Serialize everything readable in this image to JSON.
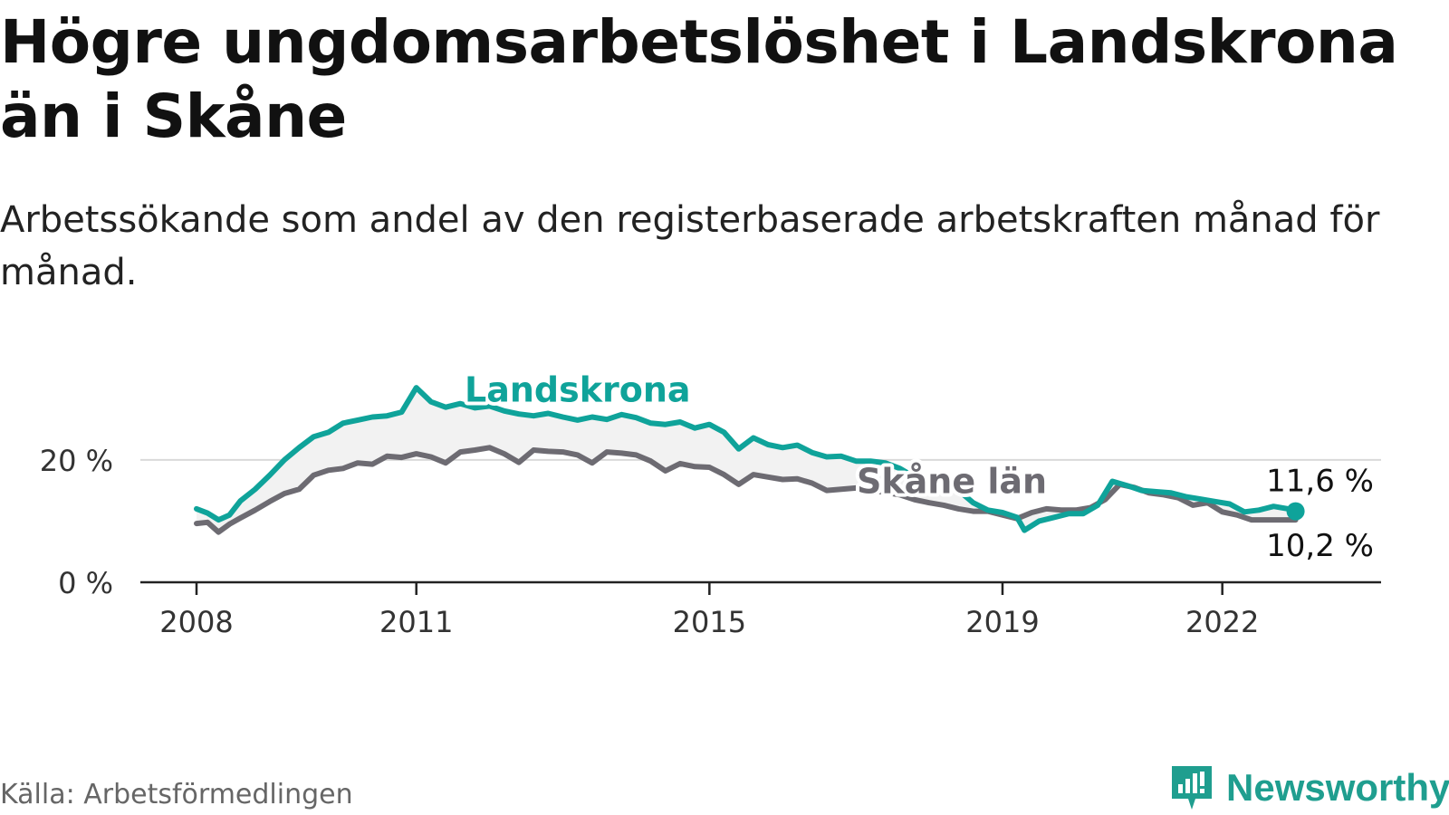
{
  "header": {
    "title": "Högre ungdomsarbetslöshet i Landskrona än i Skåne",
    "subtitle": "Arbetssökande som andel av den registerbaserade arbetskraften månad för månad."
  },
  "footer": {
    "source": "Källa: Arbetsförmedlingen",
    "brand": "Newsworthy"
  },
  "colors": {
    "landskrona": "#0fa39a",
    "skane": "#6d6b72",
    "band": "#f2f2f2",
    "grid": "#d9d9d9",
    "axis": "#222222"
  },
  "chart_data": {
    "type": "line",
    "title": "Högre ungdomsarbetslöshet i Landskrona än i Skåne",
    "xlabel": "",
    "ylabel": "",
    "unit": "%",
    "xlim": [
      2008,
      2023.45
    ],
    "ylim": [
      0,
      33
    ],
    "y_ticks": [
      {
        "value": 0,
        "label": "0 %"
      },
      {
        "value": 20,
        "label": "20 %"
      }
    ],
    "x_ticks": [
      {
        "value": 2008,
        "label": "2008"
      },
      {
        "value": 2011,
        "label": "2011"
      },
      {
        "value": 2015,
        "label": "2015"
      },
      {
        "value": 2019,
        "label": "2019"
      },
      {
        "value": 2022,
        "label": "2022"
      }
    ],
    "shade_between_series": true,
    "series": [
      {
        "name": "Landskrona",
        "color_key": "landskrona",
        "end_label": "11,6 %",
        "end_marker": true,
        "points": [
          [
            2008.0,
            12.0
          ],
          [
            2008.15,
            11.3
          ],
          [
            2008.3,
            10.2
          ],
          [
            2008.45,
            11.0
          ],
          [
            2008.6,
            13.3
          ],
          [
            2008.8,
            15.2
          ],
          [
            2009.0,
            17.5
          ],
          [
            2009.2,
            20.0
          ],
          [
            2009.4,
            22.0
          ],
          [
            2009.6,
            23.8
          ],
          [
            2009.8,
            24.5
          ],
          [
            2010.0,
            26.0
          ],
          [
            2010.2,
            26.5
          ],
          [
            2010.4,
            27.0
          ],
          [
            2010.6,
            27.2
          ],
          [
            2010.8,
            27.8
          ],
          [
            2011.0,
            31.8
          ],
          [
            2011.2,
            29.5
          ],
          [
            2011.4,
            28.6
          ],
          [
            2011.6,
            29.2
          ],
          [
            2011.8,
            28.5
          ],
          [
            2012.0,
            28.8
          ],
          [
            2012.2,
            28.0
          ],
          [
            2012.4,
            27.5
          ],
          [
            2012.6,
            27.2
          ],
          [
            2012.8,
            27.6
          ],
          [
            2013.0,
            27.0
          ],
          [
            2013.2,
            26.5
          ],
          [
            2013.4,
            27.0
          ],
          [
            2013.6,
            26.6
          ],
          [
            2013.8,
            27.4
          ],
          [
            2014.0,
            26.9
          ],
          [
            2014.2,
            26.0
          ],
          [
            2014.4,
            25.8
          ],
          [
            2014.6,
            26.2
          ],
          [
            2014.8,
            25.2
          ],
          [
            2015.0,
            25.8
          ],
          [
            2015.2,
            24.5
          ],
          [
            2015.4,
            21.8
          ],
          [
            2015.6,
            23.6
          ],
          [
            2015.8,
            22.5
          ],
          [
            2016.0,
            22.0
          ],
          [
            2016.2,
            22.4
          ],
          [
            2016.4,
            21.2
          ],
          [
            2016.6,
            20.5
          ],
          [
            2016.8,
            20.6
          ],
          [
            2017.0,
            19.8
          ],
          [
            2017.2,
            19.8
          ],
          [
            2017.4,
            19.5
          ],
          [
            2017.6,
            18.6
          ],
          [
            2017.8,
            17.2
          ],
          [
            2018.0,
            17.0
          ],
          [
            2018.2,
            16.6
          ],
          [
            2018.4,
            15.0
          ],
          [
            2018.6,
            13.0
          ],
          [
            2018.8,
            11.8
          ],
          [
            2019.0,
            11.4
          ],
          [
            2019.2,
            10.6
          ],
          [
            2019.3,
            8.5
          ],
          [
            2019.5,
            10.0
          ],
          [
            2019.7,
            10.6
          ],
          [
            2019.9,
            11.2
          ],
          [
            2020.1,
            11.2
          ],
          [
            2020.3,
            12.6
          ],
          [
            2020.5,
            16.5
          ],
          [
            2020.7,
            15.8
          ],
          [
            2020.9,
            15.0
          ],
          [
            2021.1,
            14.8
          ],
          [
            2021.3,
            14.6
          ],
          [
            2021.5,
            14.0
          ],
          [
            2021.7,
            13.6
          ],
          [
            2021.9,
            13.2
          ],
          [
            2022.1,
            12.8
          ],
          [
            2022.3,
            11.5
          ],
          [
            2022.5,
            11.8
          ],
          [
            2022.7,
            12.4
          ],
          [
            2022.9,
            12.0
          ],
          [
            2023.0,
            11.6
          ]
        ]
      },
      {
        "name": "Skåne län",
        "color_key": "skane",
        "end_label": "10,2 %",
        "end_marker": false,
        "points": [
          [
            2008.0,
            9.6
          ],
          [
            2008.15,
            9.8
          ],
          [
            2008.3,
            8.2
          ],
          [
            2008.45,
            9.5
          ],
          [
            2008.6,
            10.5
          ],
          [
            2008.8,
            11.8
          ],
          [
            2009.0,
            13.2
          ],
          [
            2009.2,
            14.5
          ],
          [
            2009.4,
            15.2
          ],
          [
            2009.6,
            17.5
          ],
          [
            2009.8,
            18.3
          ],
          [
            2010.0,
            18.6
          ],
          [
            2010.2,
            19.5
          ],
          [
            2010.4,
            19.3
          ],
          [
            2010.6,
            20.6
          ],
          [
            2010.8,
            20.4
          ],
          [
            2011.0,
            21.0
          ],
          [
            2011.2,
            20.5
          ],
          [
            2011.4,
            19.5
          ],
          [
            2011.6,
            21.3
          ],
          [
            2011.8,
            21.6
          ],
          [
            2012.0,
            22.0
          ],
          [
            2012.2,
            21.0
          ],
          [
            2012.4,
            19.6
          ],
          [
            2012.6,
            21.6
          ],
          [
            2012.8,
            21.4
          ],
          [
            2013.0,
            21.3
          ],
          [
            2013.2,
            20.8
          ],
          [
            2013.4,
            19.5
          ],
          [
            2013.6,
            21.3
          ],
          [
            2013.8,
            21.1
          ],
          [
            2014.0,
            20.8
          ],
          [
            2014.2,
            19.8
          ],
          [
            2014.4,
            18.2
          ],
          [
            2014.6,
            19.4
          ],
          [
            2014.8,
            18.9
          ],
          [
            2015.0,
            18.8
          ],
          [
            2015.2,
            17.6
          ],
          [
            2015.4,
            16.0
          ],
          [
            2015.6,
            17.6
          ],
          [
            2015.8,
            17.2
          ],
          [
            2016.0,
            16.8
          ],
          [
            2016.2,
            16.9
          ],
          [
            2016.4,
            16.2
          ],
          [
            2016.6,
            15.0
          ],
          [
            2016.8,
            15.2
          ],
          [
            2017.0,
            15.4
          ],
          [
            2017.2,
            15.0
          ],
          [
            2017.4,
            14.7
          ],
          [
            2017.6,
            14.3
          ],
          [
            2017.8,
            13.5
          ],
          [
            2018.0,
            13.0
          ],
          [
            2018.2,
            12.6
          ],
          [
            2018.4,
            12.0
          ],
          [
            2018.6,
            11.6
          ],
          [
            2018.8,
            11.6
          ],
          [
            2019.0,
            11.0
          ],
          [
            2019.2,
            10.4
          ],
          [
            2019.4,
            11.4
          ],
          [
            2019.6,
            12.0
          ],
          [
            2019.8,
            11.8
          ],
          [
            2020.0,
            11.8
          ],
          [
            2020.2,
            12.2
          ],
          [
            2020.4,
            13.5
          ],
          [
            2020.6,
            16.0
          ],
          [
            2020.8,
            15.5
          ],
          [
            2021.0,
            14.6
          ],
          [
            2021.2,
            14.3
          ],
          [
            2021.4,
            13.8
          ],
          [
            2021.6,
            12.6
          ],
          [
            2021.8,
            13.0
          ],
          [
            2022.0,
            11.5
          ],
          [
            2022.2,
            11.0
          ],
          [
            2022.4,
            10.2
          ],
          [
            2022.6,
            10.2
          ],
          [
            2022.8,
            10.2
          ],
          [
            2023.0,
            10.2
          ]
        ]
      }
    ],
    "inline_labels": [
      {
        "series": "Landskrona",
        "text": "Landskrona",
        "x": 2013.0,
        "y": 29.5
      },
      {
        "series": "Skåne län",
        "text": "Skåne län",
        "x": 2017.5,
        "y": 14.6
      }
    ]
  }
}
